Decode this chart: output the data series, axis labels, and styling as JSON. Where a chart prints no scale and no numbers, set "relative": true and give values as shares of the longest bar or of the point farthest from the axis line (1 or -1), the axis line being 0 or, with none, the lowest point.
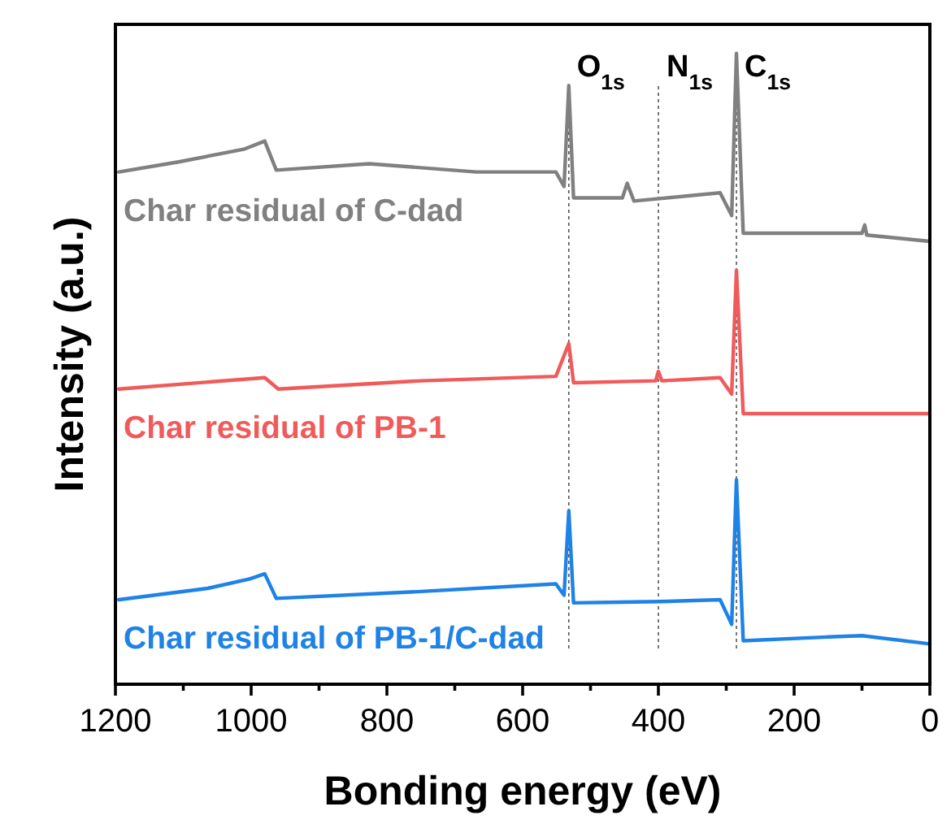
{
  "chart_data": {
    "type": "line",
    "xlabel": "Bonding energy (eV)",
    "ylabel": "Intensity (a.u.)",
    "relative": true,
    "xlim": [
      1200,
      0
    ],
    "xticks": [
      1200,
      {
        "value": 1100,
        "label": null
      },
      1000,
      {
        "value": 900,
        "label": null
      },
      800,
      {
        "value": 700,
        "label": null
      },
      600,
      {
        "value": 500,
        "label": null
      },
      400,
      {
        "value": 300,
        "label": null
      },
      200,
      {
        "value": 100,
        "label": null
      },
      0
    ],
    "marker": "none",
    "line_style": "solid",
    "ref_lines": [
      {
        "axis": "x",
        "value": 532,
        "label": "O$_{1s}$",
        "color": "#555555",
        "line_style": "dotted"
      },
      {
        "axis": "x",
        "value": 400,
        "label": "N$_{1s}$",
        "color": "#555555",
        "line_style": "dotted"
      },
      {
        "axis": "x",
        "value": 285,
        "label": "C$_{1s}$",
        "color": "#555555",
        "line_style": "dotted"
      }
    ],
    "series": [
      {
        "name": "Char residual of C-dad",
        "color": "#808080",
        "x": [
          1195,
          1107,
          1011,
          980,
          963,
          826,
          668,
          551,
          539,
          532,
          525,
          453,
          446,
          436,
          309,
          292,
          285,
          275,
          100,
          96,
          93,
          0
        ],
        "values": [
          0.812,
          0.828,
          0.848,
          0.861,
          0.815,
          0.825,
          0.812,
          0.812,
          0.789,
          0.949,
          0.771,
          0.771,
          0.794,
          0.766,
          0.779,
          0.743,
          1.0,
          0.715,
          0.715,
          0.728,
          0.712,
          0.702
        ]
      },
      {
        "name": "Char residual of PB-1",
        "color": "#f05a5a",
        "x": [
          1195,
          980,
          960,
          750,
          551,
          532,
          525,
          404,
          400,
          395,
          309,
          292,
          285,
          275,
          0
        ],
        "values": [
          0.468,
          0.486,
          0.468,
          0.481,
          0.488,
          0.54,
          0.478,
          0.481,
          0.496,
          0.481,
          0.486,
          0.46,
          0.656,
          0.429,
          0.429
        ]
      },
      {
        "name": "Char residual of PB-1/C-dad",
        "color": "#1e82e6",
        "x": [
          1195,
          1064,
          1002,
          980,
          963,
          750,
          551,
          539,
          532,
          525,
          396,
          309,
          292,
          285,
          275,
          149,
          100,
          0
        ],
        "values": [
          0.134,
          0.152,
          0.167,
          0.175,
          0.136,
          0.147,
          0.159,
          0.141,
          0.275,
          0.129,
          0.131,
          0.134,
          0.095,
          0.324,
          0.069,
          0.075,
          0.077,
          0.064
        ]
      }
    ]
  }
}
